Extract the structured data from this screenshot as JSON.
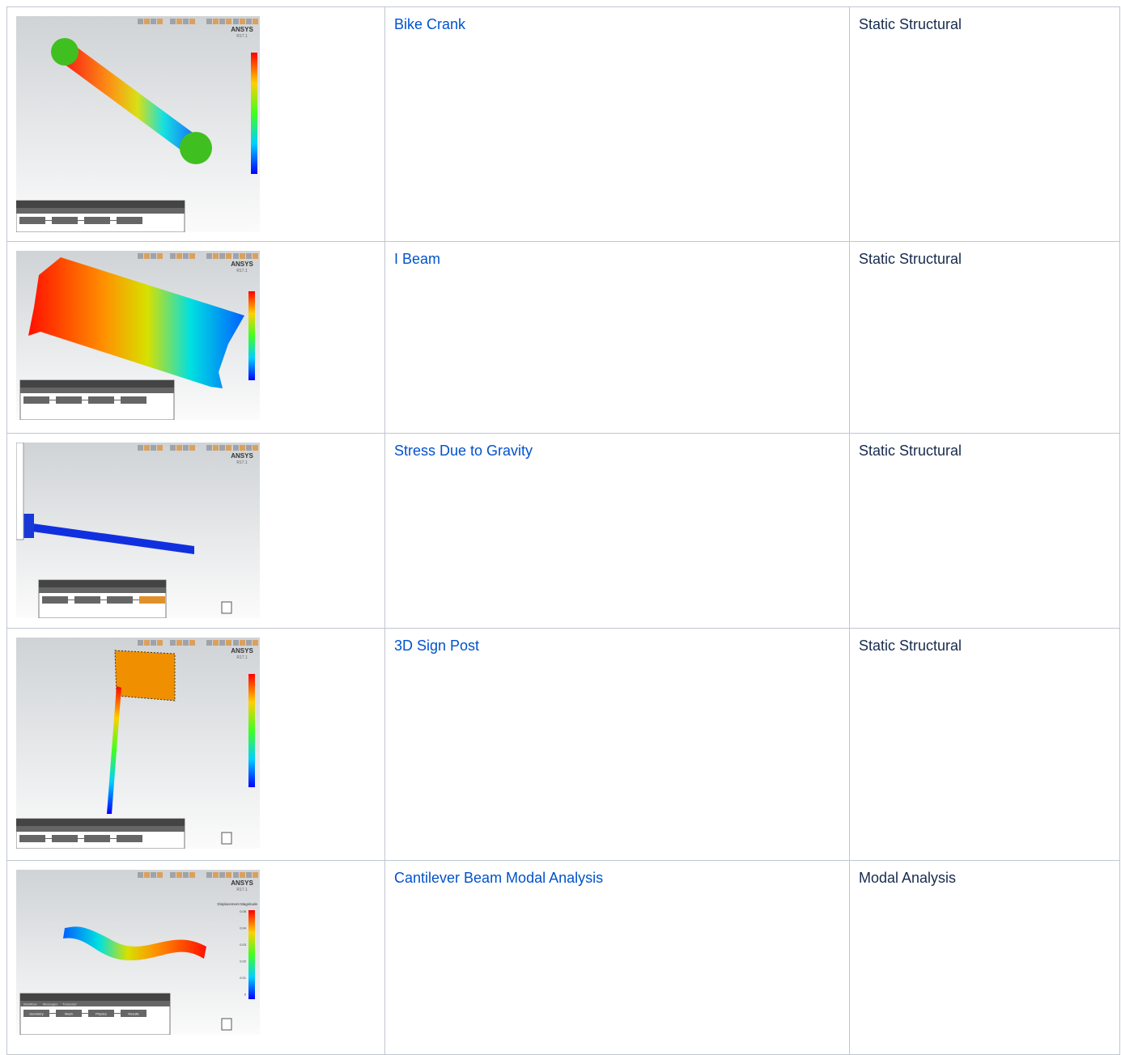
{
  "rows": [
    {
      "title": "Bike Crank",
      "analysis": "Static Structural",
      "brand": "ANSYS",
      "version": "R17.1"
    },
    {
      "title": "I Beam",
      "analysis": "Static Structural",
      "brand": "ANSYS",
      "version": "R17.1"
    },
    {
      "title": "Stress Due to Gravity",
      "analysis": "Static Structural",
      "brand": "ANSYS",
      "version": "R17.1"
    },
    {
      "title": "3D Sign Post",
      "analysis": "Static Structural",
      "brand": "ANSYS",
      "version": "R17.1"
    },
    {
      "title": "Cantilever Beam Modal Analysis",
      "analysis": "Modal Analysis",
      "brand": "ANSYS",
      "version": "R17.1",
      "legend_title": "Displacement Magnitude",
      "legend_ticks": [
        "0.05",
        "0.04",
        "0.03",
        "0.02",
        "0.01",
        "0"
      ],
      "tabs": [
        "Workflow",
        "Messages",
        "Transcript"
      ],
      "steps": [
        "Geometry",
        "Mesh",
        "Physics",
        "Results"
      ]
    }
  ]
}
